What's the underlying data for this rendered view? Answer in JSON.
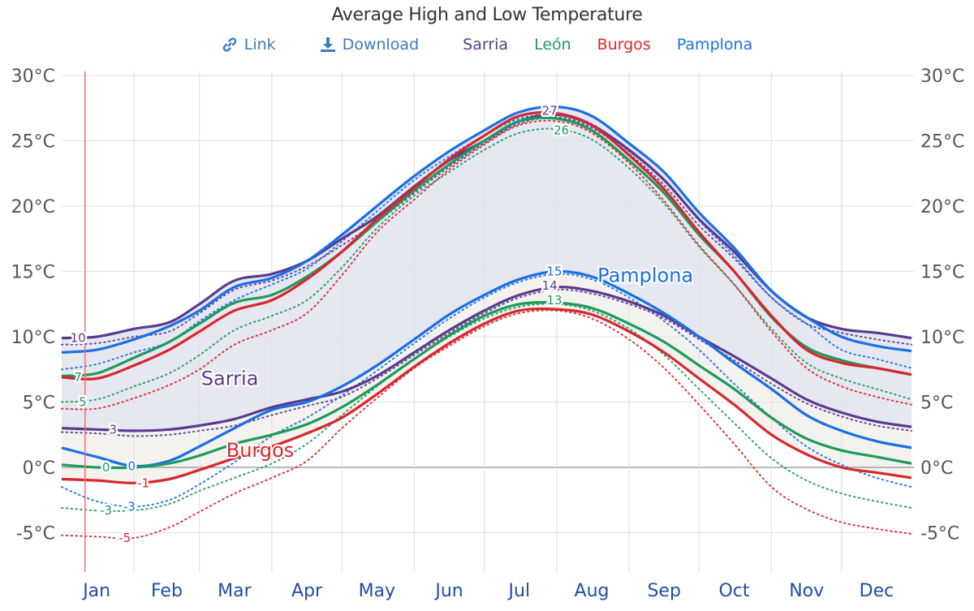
{
  "header": {
    "title": "Average High and Low Temperature",
    "link_label": "Link",
    "download_label": "Download",
    "link_icon": "link-icon",
    "download_icon": "download-icon"
  },
  "legend": [
    {
      "name": "Sarria",
      "color": "#5b3a8e"
    },
    {
      "name": "León",
      "color": "#1e9a5a"
    },
    {
      "name": "Burgos",
      "color": "#d9262c"
    },
    {
      "name": "Pamplona",
      "color": "#1a6ee6"
    }
  ],
  "colors": {
    "link": "#3a7bc0",
    "grid": "#e2e2e2",
    "zero_line": "#a0a0a0",
    "today_marker": "#f07070",
    "band_upper": "#e6e8f1",
    "band_lower": "#f3f2ee",
    "ytick": "#555555",
    "xtick": "#1f4fa3"
  },
  "chart_data": {
    "type": "line",
    "title": "Average High and Low Temperature",
    "xlabel": "",
    "ylabel": "",
    "x_unit": "day of year",
    "x": [
      0,
      15,
      31,
      46,
      59,
      74,
      90,
      105,
      120,
      135,
      151,
      166,
      181,
      196,
      212,
      227,
      243,
      258,
      273,
      288,
      304,
      319,
      334,
      349,
      364
    ],
    "xlim": [
      0,
      365
    ],
    "ylim": [
      -8,
      30.5
    ],
    "grid": true,
    "month_ticks": [
      {
        "label": "Jan",
        "day": 15
      },
      {
        "label": "Feb",
        "day": 45
      },
      {
        "label": "Mar",
        "day": 74
      },
      {
        "label": "Apr",
        "day": 105
      },
      {
        "label": "May",
        "day": 135
      },
      {
        "label": "Jun",
        "day": 166
      },
      {
        "label": "Jul",
        "day": 196
      },
      {
        "label": "Aug",
        "day": 227
      },
      {
        "label": "Sep",
        "day": 258
      },
      {
        "label": "Oct",
        "day": 288
      },
      {
        "label": "Nov",
        "day": 319
      },
      {
        "label": "Dec",
        "day": 349
      }
    ],
    "month_boundaries": [
      31,
      59,
      90,
      120,
      151,
      181,
      212,
      243,
      273,
      304,
      334
    ],
    "y_ticks": [
      {
        "value": 30,
        "label": "30°C"
      },
      {
        "value": 25,
        "label": "25°C"
      },
      {
        "value": 20,
        "label": "20°C"
      },
      {
        "value": 15,
        "label": "15°C"
      },
      {
        "value": 10,
        "label": "10°C"
      },
      {
        "value": 5,
        "label": "5°C"
      },
      {
        "value": 0,
        "label": "0°C"
      },
      {
        "value": -5,
        "label": "-5°C"
      }
    ],
    "today_marker_day": 10,
    "series": [
      {
        "name": "Sarria high",
        "city": "Sarria",
        "kind": "high",
        "style": "solid",
        "color": "#5b3a8e",
        "values": [
          9.9,
          10.0,
          10.6,
          11.1,
          12.5,
          14.3,
          14.8,
          15.8,
          17.5,
          19.2,
          21.5,
          23.5,
          25.0,
          26.5,
          27.0,
          26.2,
          24.3,
          22.0,
          19.0,
          16.5,
          13.5,
          11.5,
          10.6,
          10.3,
          9.9
        ]
      },
      {
        "name": "Pamplona high",
        "city": "Pamplona",
        "kind": "high",
        "style": "solid",
        "color": "#1a6ee6",
        "values": [
          8.8,
          9.0,
          9.8,
          10.8,
          12.0,
          13.8,
          14.5,
          15.8,
          17.8,
          20.0,
          22.3,
          24.2,
          25.8,
          27.2,
          27.6,
          26.9,
          24.8,
          22.6,
          19.5,
          16.8,
          13.5,
          11.5,
          10.0,
          9.3,
          8.9
        ]
      },
      {
        "name": "León high",
        "city": "León",
        "kind": "high",
        "style": "solid",
        "color": "#1e9a5a",
        "values": [
          7.0,
          7.2,
          8.4,
          9.6,
          11.0,
          12.6,
          13.2,
          14.6,
          16.5,
          18.8,
          21.2,
          23.2,
          25.0,
          26.5,
          26.7,
          25.8,
          23.5,
          21.0,
          17.8,
          15.0,
          11.5,
          9.2,
          8.2,
          7.6,
          7.1
        ]
      },
      {
        "name": "Burgos high",
        "city": "Burgos",
        "kind": "high",
        "style": "solid",
        "color": "#d9262c",
        "values": [
          6.9,
          6.8,
          7.8,
          9.0,
          10.4,
          12.0,
          12.8,
          14.4,
          16.5,
          19.0,
          21.4,
          23.6,
          25.4,
          26.9,
          27.1,
          26.2,
          23.9,
          21.3,
          18.0,
          15.0,
          11.6,
          9.0,
          8.0,
          7.6,
          7.1
        ]
      },
      {
        "name": "Sarria low",
        "city": "Sarria",
        "kind": "low",
        "style": "solid",
        "color": "#5b3a8e",
        "values": [
          3.0,
          2.9,
          2.8,
          2.9,
          3.2,
          3.7,
          4.6,
          5.2,
          5.8,
          7.0,
          8.8,
          10.5,
          12.0,
          13.2,
          13.8,
          13.5,
          12.7,
          11.6,
          10.0,
          8.5,
          6.8,
          5.2,
          4.2,
          3.5,
          3.1
        ]
      },
      {
        "name": "Pamplona low",
        "city": "Pamplona",
        "kind": "low",
        "style": "solid",
        "color": "#1a6ee6",
        "values": [
          1.5,
          0.8,
          0.1,
          0.5,
          1.6,
          3.0,
          4.4,
          5.0,
          6.2,
          7.8,
          9.8,
          11.7,
          13.2,
          14.4,
          15.0,
          14.6,
          13.3,
          11.8,
          10.0,
          8.0,
          6.0,
          4.0,
          2.8,
          2.0,
          1.5
        ]
      },
      {
        "name": "León low",
        "city": "León",
        "kind": "low",
        "style": "solid",
        "color": "#1e9a5a",
        "values": [
          0.2,
          0.0,
          0.0,
          0.3,
          0.9,
          1.8,
          2.5,
          3.3,
          4.6,
          6.3,
          8.3,
          10.1,
          11.6,
          12.5,
          12.6,
          12.2,
          11.0,
          9.6,
          7.8,
          6.0,
          3.8,
          2.2,
          1.3,
          0.8,
          0.3
        ]
      },
      {
        "name": "Burgos low",
        "city": "Burgos",
        "kind": "low",
        "style": "solid",
        "color": "#d9262c",
        "values": [
          -0.9,
          -1.0,
          -1.2,
          -0.9,
          -0.2,
          0.7,
          1.6,
          2.6,
          3.8,
          5.6,
          7.7,
          9.5,
          11.0,
          12.0,
          12.1,
          11.7,
          10.4,
          8.8,
          6.8,
          4.8,
          2.5,
          1.0,
          0.0,
          -0.4,
          -0.8
        ]
      },
      {
        "name": "Sarria high (dotted)",
        "city": "Sarria",
        "kind": "high",
        "style": "dotted",
        "color": "#5b3a8e",
        "values": [
          9.4,
          9.5,
          10.0,
          10.4,
          11.8,
          13.6,
          14.3,
          15.4,
          17.0,
          18.8,
          21.0,
          23.0,
          24.8,
          26.3,
          26.8,
          26.0,
          24.0,
          21.6,
          18.5,
          16.0,
          13.0,
          11.0,
          10.3,
          9.8,
          9.4
        ]
      },
      {
        "name": "Pamplona high (dotted)",
        "city": "Pamplona",
        "kind": "high",
        "style": "dotted",
        "color": "#1a6ee6",
        "values": [
          7.5,
          7.9,
          8.8,
          9.6,
          11.2,
          12.8,
          14.0,
          15.2,
          17.3,
          19.6,
          22.0,
          23.8,
          25.4,
          26.7,
          27.0,
          26.3,
          24.2,
          22.0,
          18.9,
          16.2,
          13.0,
          11.0,
          9.0,
          8.3,
          7.6
        ]
      },
      {
        "name": "León high (dotted)",
        "city": "León",
        "kind": "high",
        "style": "dotted",
        "color": "#1e9a5a",
        "values": [
          5.0,
          5.2,
          6.2,
          7.2,
          8.6,
          10.5,
          11.6,
          12.8,
          15.3,
          18.3,
          20.8,
          22.6,
          24.3,
          25.6,
          25.9,
          25.1,
          22.9,
          20.2,
          16.9,
          14.0,
          10.6,
          8.0,
          6.8,
          6.0,
          5.2
        ]
      },
      {
        "name": "Burgos high (dotted)",
        "city": "Burgos",
        "kind": "high",
        "style": "dotted",
        "color": "#d9262c",
        "values": [
          4.5,
          4.5,
          5.3,
          6.3,
          7.5,
          9.4,
          10.5,
          11.8,
          14.7,
          18.0,
          20.5,
          22.8,
          24.7,
          26.2,
          26.5,
          25.6,
          23.3,
          20.4,
          17.0,
          14.0,
          10.4,
          7.6,
          6.2,
          5.4,
          4.8
        ]
      },
      {
        "name": "Sarria low (dotted)",
        "city": "Sarria",
        "kind": "low",
        "style": "dotted",
        "color": "#5b3a8e",
        "values": [
          2.7,
          2.6,
          2.4,
          2.5,
          2.8,
          3.2,
          4.0,
          4.7,
          5.4,
          6.8,
          8.6,
          10.3,
          11.8,
          13.0,
          13.6,
          13.3,
          12.5,
          11.4,
          9.8,
          8.2,
          6.4,
          4.9,
          3.9,
          3.2,
          2.8
        ]
      },
      {
        "name": "Pamplona low (dotted)",
        "city": "Pamplona",
        "kind": "low",
        "style": "dotted",
        "color": "#1a6ee6",
        "values": [
          -1.5,
          -2.6,
          -3.0,
          -2.5,
          -1.3,
          0.4,
          2.4,
          3.8,
          5.5,
          7.4,
          9.5,
          11.4,
          13.0,
          14.2,
          14.8,
          14.4,
          13.0,
          11.2,
          9.0,
          6.4,
          3.8,
          1.6,
          0.2,
          -0.8,
          -1.5
        ]
      },
      {
        "name": "León low (dotted)",
        "city": "León",
        "kind": "low",
        "style": "dotted",
        "color": "#1e9a5a",
        "values": [
          -3.1,
          -3.3,
          -3.3,
          -2.8,
          -1.8,
          -0.8,
          0.3,
          1.8,
          4.0,
          6.2,
          8.3,
          10.0,
          11.4,
          12.3,
          12.5,
          12.0,
          10.6,
          8.6,
          6.0,
          3.4,
          0.7,
          -1.0,
          -2.0,
          -2.6,
          -3.1
        ]
      },
      {
        "name": "Burgos low (dotted)",
        "city": "Burgos",
        "kind": "low",
        "style": "dotted",
        "color": "#d9262c",
        "values": [
          -5.2,
          -5.3,
          -5.4,
          -4.6,
          -3.4,
          -2.0,
          -0.8,
          0.5,
          3.0,
          5.3,
          7.6,
          9.3,
          10.8,
          11.8,
          12.0,
          11.4,
          9.8,
          7.6,
          4.8,
          1.8,
          -1.5,
          -3.2,
          -4.2,
          -4.7,
          -5.1
        ]
      }
    ],
    "annotations": [
      {
        "text": "10",
        "day": 7,
        "value": 9.9,
        "color": "#5b3a8e"
      },
      {
        "text": "7",
        "day": 7,
        "value": 6.9,
        "color": "#1e9a5a"
      },
      {
        "text": "5",
        "day": 9,
        "value": 5.0,
        "color": "#1e9a5a"
      },
      {
        "text": "3",
        "day": 22,
        "value": 2.9,
        "color": "#5b3a8e"
      },
      {
        "text": "0",
        "day": 19,
        "value": 0.0,
        "color": "#1e9a5a"
      },
      {
        "text": "0",
        "day": 30,
        "value": 0.1,
        "color": "#1a6ee6"
      },
      {
        "text": "-1",
        "day": 35,
        "value": -1.2,
        "color": "#d9262c"
      },
      {
        "text": "-3",
        "day": 19,
        "value": -3.3,
        "color": "#1e9a5a"
      },
      {
        "text": "-3",
        "day": 29,
        "value": -3.0,
        "color": "#1a6ee6"
      },
      {
        "text": "-5",
        "day": 27,
        "value": -5.4,
        "color": "#d9262c"
      },
      {
        "text": "27",
        "day": 209,
        "value": 27.3,
        "color": "#5b3a8e"
      },
      {
        "text": "26",
        "day": 214,
        "value": 25.8,
        "color": "#1e9a5a"
      },
      {
        "text": "15",
        "day": 211,
        "value": 15.0,
        "color": "#1a6ee6"
      },
      {
        "text": "14",
        "day": 209,
        "value": 13.9,
        "color": "#5b3a8e"
      },
      {
        "text": "13",
        "day": 211,
        "value": 12.8,
        "color": "#1e9a5a"
      }
    ],
    "city_labels": [
      {
        "text": "Sarria",
        "day": 72,
        "value": 6.3,
        "color": "#5b3a8e"
      },
      {
        "text": "Burgos",
        "day": 85,
        "value": 0.8,
        "color": "#d9262c"
      },
      {
        "text": "Pamplona",
        "day": 250,
        "value": 14.2,
        "color": "#1a6ee6"
      }
    ]
  }
}
